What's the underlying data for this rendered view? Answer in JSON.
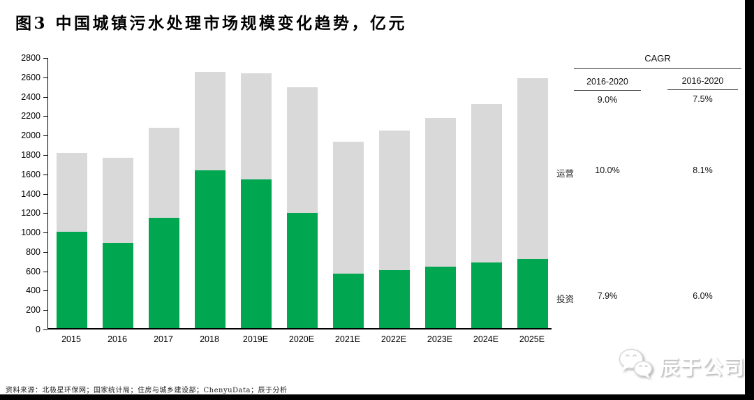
{
  "title": "图3 中国城镇污水处理市场规模变化趋势，亿元",
  "colors": {
    "invest_green": "#00A750",
    "operation_gray": "#D9D9D9",
    "axis": "#000000"
  },
  "chart_data": {
    "type": "bar",
    "stacked": true,
    "title": "中国城镇污水处理市场规模变化趋势",
    "unit": "亿元",
    "categories": [
      "2015",
      "2016",
      "2017",
      "2018",
      "2019E",
      "2020E",
      "2021E",
      "2022E",
      "2023E",
      "2024E",
      "2025E"
    ],
    "series": [
      {
        "name": "投资",
        "color": "#00A750",
        "values": [
          990,
          880,
          1140,
          1630,
          1530,
          1190,
          565,
          595,
          635,
          675,
          715
        ]
      },
      {
        "name": "运营",
        "color": "#D9D9D9",
        "values": [
          820,
          875,
          925,
          1010,
          1100,
          1290,
          1360,
          1445,
          1535,
          1635,
          1865
        ]
      }
    ],
    "totals": [
      1810,
      1755,
      2065,
      2640,
      2630,
      2480,
      1925,
      2040,
      2170,
      2310,
      2580
    ],
    "ylim": [
      0,
      2800
    ],
    "ytick_step": 200,
    "grid": false,
    "legend_position": "right-row-labels"
  },
  "cagr_table": {
    "header": "CAGR",
    "col_headers": [
      "2016-2020",
      "2016-2020"
    ],
    "total_values": [
      "9.0%",
      "7.5%"
    ],
    "rows": [
      {
        "label": "运营",
        "values": [
          "10.0%",
          "8.1%"
        ]
      },
      {
        "label": "投资",
        "values": [
          "7.9%",
          "6.0%"
        ]
      }
    ]
  },
  "source": "资料来源：北极星环保网；国家统计局；住房与城乡建设部；ChenyuData；辰于分析",
  "logo": {
    "text": "辰于公司",
    "icon": "wechat-bubbles-icon"
  }
}
